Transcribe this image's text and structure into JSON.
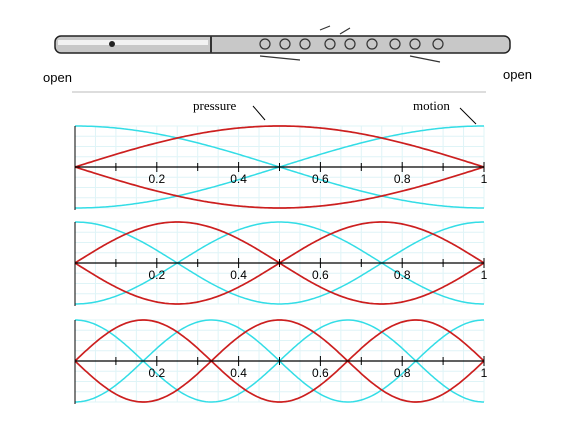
{
  "labels": {
    "open_left": "open",
    "open_right": "open",
    "pressure": "pressure",
    "motion": "motion"
  },
  "panels": [
    {
      "ticks": [
        0.2,
        0.4,
        0.6,
        0.8,
        1
      ]
    },
    {
      "ticks": [
        0.2,
        0.4,
        0.6,
        0.8,
        1
      ]
    },
    {
      "ticks": [
        0.2,
        0.4,
        0.6,
        0.8,
        1
      ]
    }
  ]
}
